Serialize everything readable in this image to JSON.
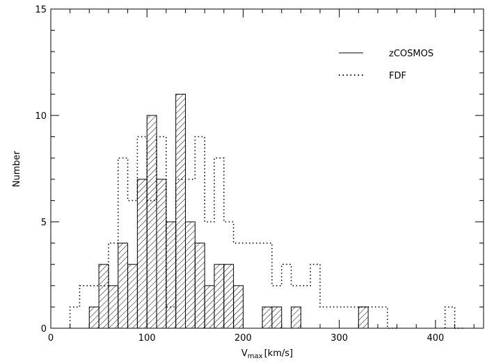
{
  "chart_data": {
    "type": "bar",
    "title": "",
    "xlabel": "V",
    "xlabel_subscript": "max",
    "xlabel_unit": "[km/s]",
    "ylabel": "Number",
    "xlim": [
      0,
      450
    ],
    "ylim": [
      0,
      15
    ],
    "x_ticks": [
      0,
      100,
      200,
      300,
      400
    ],
    "y_ticks": [
      0,
      5,
      10,
      15
    ],
    "x_tick_labels": [
      "0",
      "100",
      "200",
      "300",
      "400"
    ],
    "y_tick_labels": [
      "0",
      "5",
      "10",
      "15"
    ],
    "bin_width": 10,
    "grid": false,
    "legend_position": "top-right",
    "series": [
      {
        "name": "zCOSMOS",
        "style": "hatched-histogram",
        "bins": [
          {
            "x0": 40,
            "count": 1
          },
          {
            "x0": 50,
            "count": 3
          },
          {
            "x0": 60,
            "count": 2
          },
          {
            "x0": 70,
            "count": 4
          },
          {
            "x0": 80,
            "count": 3
          },
          {
            "x0": 90,
            "count": 7
          },
          {
            "x0": 100,
            "count": 10
          },
          {
            "x0": 110,
            "count": 7
          },
          {
            "x0": 120,
            "count": 5
          },
          {
            "x0": 130,
            "count": 11
          },
          {
            "x0": 140,
            "count": 5
          },
          {
            "x0": 150,
            "count": 4
          },
          {
            "x0": 160,
            "count": 2
          },
          {
            "x0": 170,
            "count": 3
          },
          {
            "x0": 180,
            "count": 3
          },
          {
            "x0": 190,
            "count": 2
          },
          {
            "x0": 220,
            "count": 1
          },
          {
            "x0": 230,
            "count": 1
          },
          {
            "x0": 250,
            "count": 1
          },
          {
            "x0": 320,
            "count": 1
          }
        ]
      },
      {
        "name": "FDF",
        "style": "dotted-step",
        "bins": [
          {
            "x0": 20,
            "count": 1
          },
          {
            "x0": 30,
            "count": 2
          },
          {
            "x0": 40,
            "count": 2
          },
          {
            "x0": 50,
            "count": 2
          },
          {
            "x0": 60,
            "count": 4
          },
          {
            "x0": 70,
            "count": 8
          },
          {
            "x0": 80,
            "count": 6
          },
          {
            "x0": 90,
            "count": 9
          },
          {
            "x0": 100,
            "count": 6
          },
          {
            "x0": 110,
            "count": 9
          },
          {
            "x0": 120,
            "count": 1
          },
          {
            "x0": 130,
            "count": 7
          },
          {
            "x0": 140,
            "count": 7
          },
          {
            "x0": 150,
            "count": 9
          },
          {
            "x0": 160,
            "count": 5
          },
          {
            "x0": 170,
            "count": 8
          },
          {
            "x0": 180,
            "count": 5
          },
          {
            "x0": 190,
            "count": 4
          },
          {
            "x0": 200,
            "count": 4
          },
          {
            "x0": 210,
            "count": 4
          },
          {
            "x0": 220,
            "count": 4
          },
          {
            "x0": 230,
            "count": 2
          },
          {
            "x0": 240,
            "count": 3
          },
          {
            "x0": 250,
            "count": 2
          },
          {
            "x0": 260,
            "count": 2
          },
          {
            "x0": 270,
            "count": 3
          },
          {
            "x0": 280,
            "count": 1
          },
          {
            "x0": 290,
            "count": 1
          },
          {
            "x0": 300,
            "count": 1
          },
          {
            "x0": 310,
            "count": 1
          },
          {
            "x0": 320,
            "count": 1
          },
          {
            "x0": 330,
            "count": 1
          },
          {
            "x0": 340,
            "count": 1
          },
          {
            "x0": 350,
            "count": 0
          },
          {
            "x0": 410,
            "count": 1
          }
        ]
      }
    ],
    "colors": {
      "axis": "#000000",
      "bars": "#000000",
      "background": "#ffffff"
    }
  }
}
